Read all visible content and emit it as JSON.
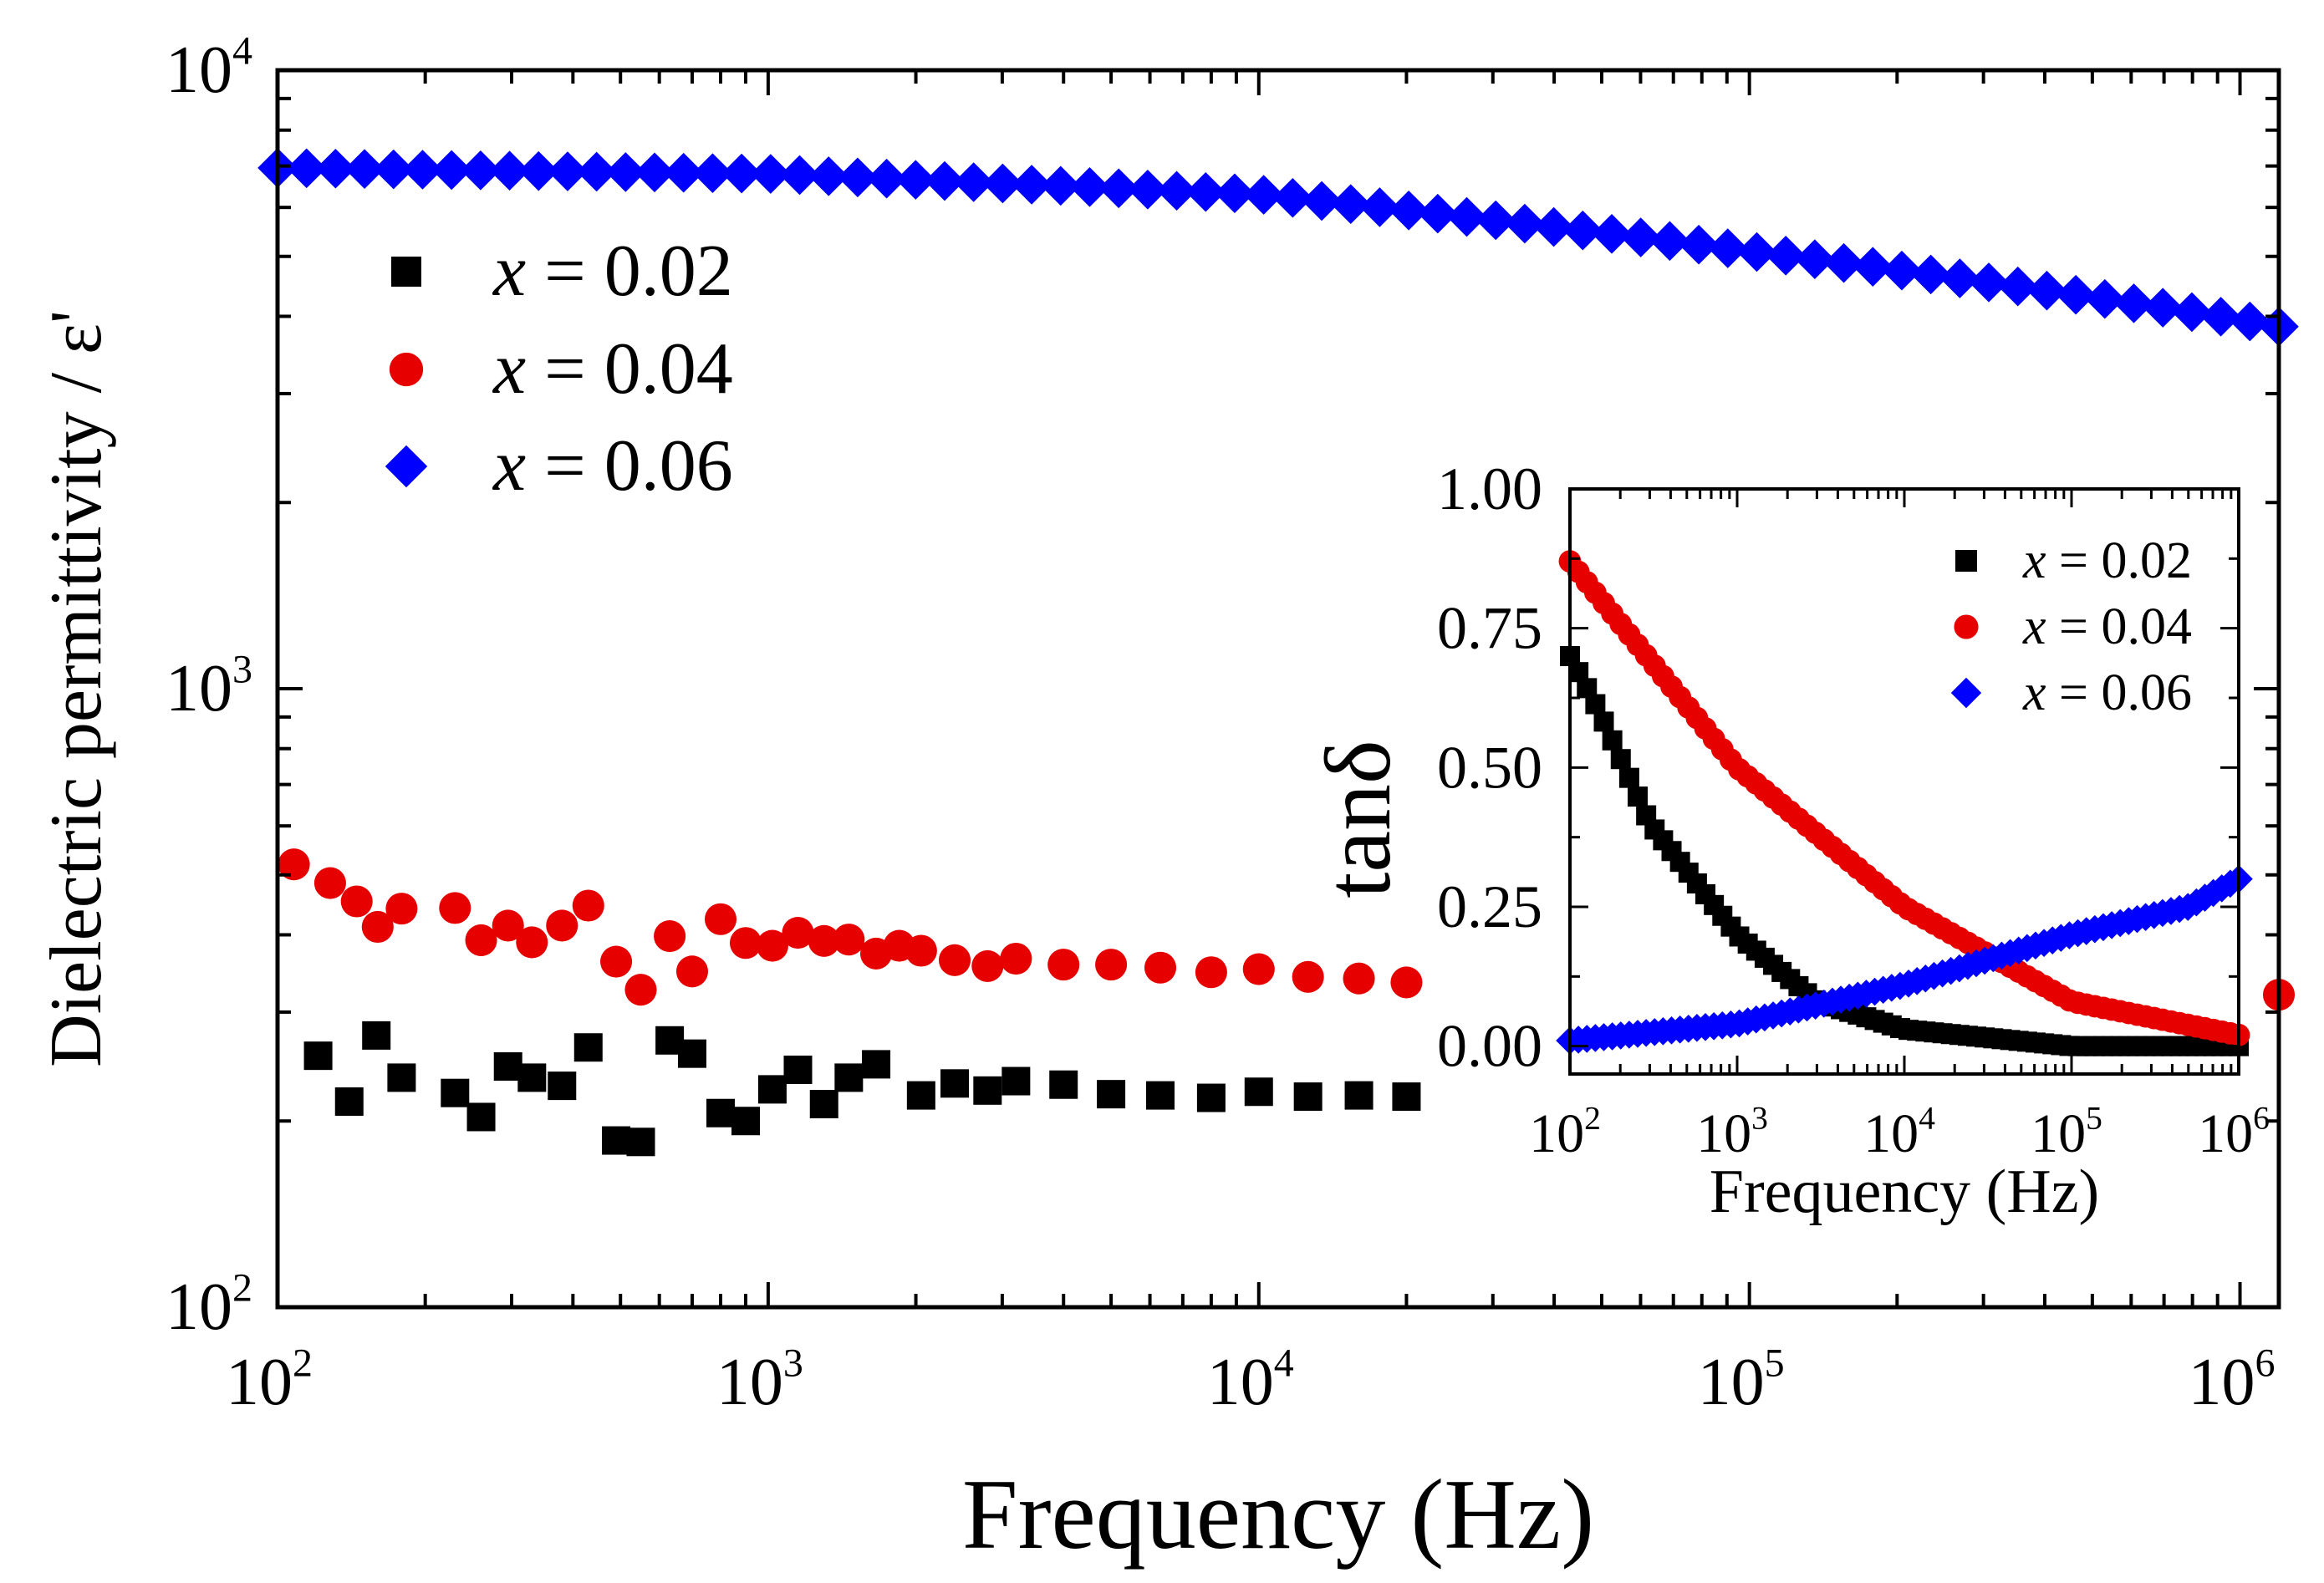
{
  "chart_data": [
    {
      "id": "main",
      "type": "scatter",
      "xscale": "log",
      "yscale": "log",
      "xlim": [
        100,
        1200000
      ],
      "ylim": [
        100,
        10000
      ],
      "xlabel": "Frequency (Hz)",
      "ylabel": "Dielectric permittivity / ε'",
      "legend_position": "top-left",
      "x_ticks": [
        {
          "value": 100,
          "base": "10",
          "exp": "2"
        },
        {
          "value": 1000,
          "base": "10",
          "exp": "3"
        },
        {
          "value": 10000,
          "base": "10",
          "exp": "4"
        },
        {
          "value": 100000,
          "base": "10",
          "exp": "5"
        },
        {
          "value": 1000000,
          "base": "10",
          "exp": "6"
        }
      ],
      "y_ticks": [
        {
          "value": 100,
          "base": "10",
          "exp": "2"
        },
        {
          "value": 1000,
          "base": "10",
          "exp": "3"
        },
        {
          "value": 10000,
          "base": "10",
          "exp": "4"
        }
      ],
      "series": [
        {
          "name_var": "x",
          "name_rest": " = 0.02",
          "color": "#000000",
          "marker": "square",
          "x": [
            121,
            140,
            159,
            179,
            230,
            260,
            295,
            330,
            380,
            430,
            490,
            550,
            630,
            700,
            800,
            900,
            1020,
            1150,
            1300,
            1460,
            1660,
            2050,
            2400,
            2800,
            3200,
            4000,
            5000,
            6300,
            8000,
            10000,
            12600,
            16000,
            20000
          ],
          "y": [
            255,
            215,
            275,
            235,
            222,
            203,
            245,
            235,
            228,
            263,
            186,
            185,
            270,
            257,
            206,
            200,
            225,
            242,
            213,
            235,
            247,
            220,
            230,
            224,
            232,
            229,
            221,
            220,
            218,
            223,
            219,
            220,
            219
          ]
        },
        {
          "name_var": "x",
          "name_rest": " = 0.04",
          "color": "#e60000",
          "marker": "circle",
          "x": [
            108,
            128,
            145,
            160,
            179,
            230,
            260,
            295,
            330,
            380,
            430,
            490,
            550,
            630,
            700,
            800,
            900,
            1020,
            1150,
            1300,
            1460,
            1660,
            1850,
            2050,
            2400,
            2800,
            3200,
            4000,
            5000,
            6300,
            8000,
            10000,
            12600,
            16000,
            20000
          ],
          "y": [
            520,
            485,
            453,
            412,
            441,
            442,
            392,
            414,
            389,
            414,
            446,
            362,
            326,
            398,
            349,
            424,
            388,
            384,
            403,
            391,
            393,
            373,
            384,
            377,
            364,
            356,
            366,
            358,
            358,
            354,
            348,
            352,
            342,
            340,
            335
          ],
          "x_extra": [
            1200000
          ],
          "y_extra": [
            320
          ]
        },
        {
          "name_var": "x",
          "name_rest": " = 0.06",
          "color": "#0000ff",
          "marker": "diamond",
          "x_start": 100,
          "x_end": 1200000,
          "n_points": 70,
          "y_anchors": [
            [
              100,
              6950
            ],
            [
              1000,
              6800
            ],
            [
              10000,
              6300
            ],
            [
              100000,
              5100
            ],
            [
              1000000,
              3950
            ],
            [
              1200000,
              3850
            ]
          ]
        }
      ]
    },
    {
      "id": "inset",
      "type": "scatter",
      "xscale": "log",
      "yscale": "linear",
      "xlim": [
        100,
        1000000
      ],
      "ylim": [
        -0.05,
        1.0
      ],
      "xlabel": "Frequency (Hz)",
      "ylabel": "tanδ",
      "legend_position": "top-right",
      "x_ticks": [
        {
          "value": 100,
          "base": "10",
          "exp": "2"
        },
        {
          "value": 1000,
          "base": "10",
          "exp": "3"
        },
        {
          "value": 10000,
          "base": "10",
          "exp": "4"
        },
        {
          "value": 100000,
          "base": "10",
          "exp": "5"
        },
        {
          "value": 1000000,
          "base": "10",
          "exp": "6"
        }
      ],
      "y_ticks": [
        {
          "value": 0.0,
          "label": "0.00"
        },
        {
          "value": 0.25,
          "label": "0.25"
        },
        {
          "value": 0.5,
          "label": "0.50"
        },
        {
          "value": 0.75,
          "label": "0.75"
        },
        {
          "value": 1.0,
          "label": "1.00"
        }
      ],
      "series": [
        {
          "name_var": "x",
          "name_rest": " = 0.02",
          "color": "#000000",
          "marker": "square",
          "x_start": 100,
          "x_end": 1000000,
          "n_points": 80,
          "y_anchors": [
            [
              100,
              0.7
            ],
            [
              150,
              0.6
            ],
            [
              300,
              0.4
            ],
            [
              1000,
              0.2
            ],
            [
              3000,
              0.08
            ],
            [
              10000,
              0.03
            ],
            [
              100000,
              0.0
            ],
            [
              1000000,
              0.0
            ]
          ]
        },
        {
          "name_var": "x",
          "name_rest": " = 0.04",
          "color": "#e60000",
          "marker": "circle",
          "x_start": 100,
          "x_end": 1000000,
          "n_points": 80,
          "y_anchors": [
            [
              100,
              0.87
            ],
            [
              1000,
              0.5
            ],
            [
              10000,
              0.25
            ],
            [
              100000,
              0.08
            ],
            [
              1000000,
              0.02
            ]
          ]
        },
        {
          "name_var": "x",
          "name_rest": " = 0.06",
          "color": "#0000ff",
          "marker": "diamond",
          "x_start": 100,
          "x_end": 1000000,
          "n_points": 80,
          "y_anchors": [
            [
              100,
              0.01
            ],
            [
              1000,
              0.04
            ],
            [
              10000,
              0.11
            ],
            [
              100000,
              0.2
            ],
            [
              500000,
              0.25
            ],
            [
              1000000,
              0.3
            ]
          ]
        }
      ]
    }
  ]
}
